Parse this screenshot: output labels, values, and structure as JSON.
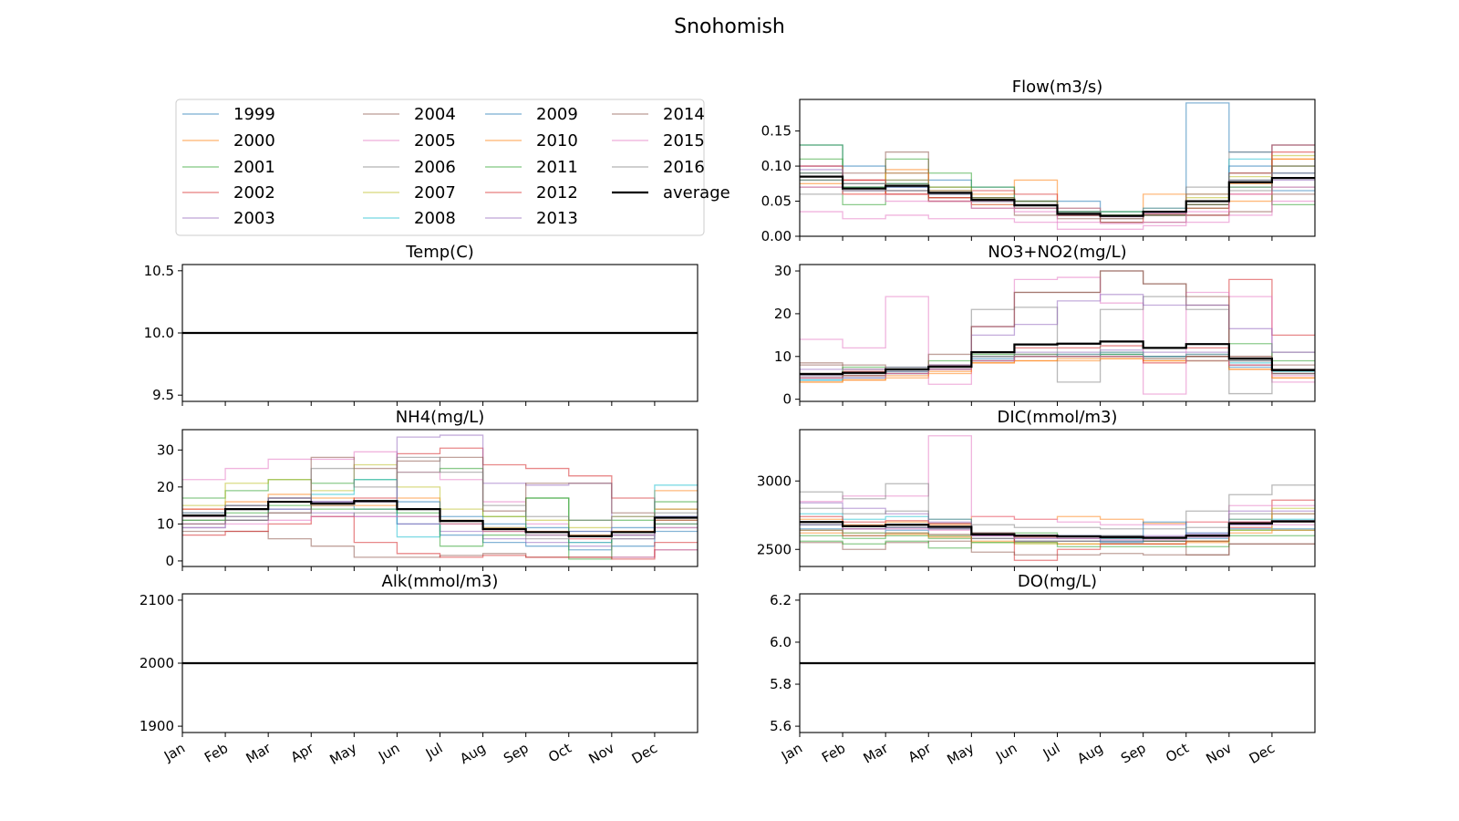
{
  "figure_title": "Snohomish",
  "months": [
    "Jan",
    "Feb",
    "Mar",
    "Apr",
    "May",
    "Jun",
    "Jul",
    "Aug",
    "Sep",
    "Oct",
    "Nov",
    "Dec"
  ],
  "legend": {
    "entries": [
      "1999",
      "2000",
      "2001",
      "2002",
      "2003",
      "2004",
      "2005",
      "2006",
      "2007",
      "2008",
      "2009",
      "2010",
      "2011",
      "2012",
      "2013",
      "2014",
      "2015",
      "2016",
      "average"
    ],
    "colors": [
      "#1f77b4",
      "#ff7f0e",
      "#2ca02c",
      "#d62728",
      "#9467bd",
      "#8c564b",
      "#e377c2",
      "#7f7f7f",
      "#bcbd22",
      "#17becf",
      "#1f77b4",
      "#ff7f0e",
      "#2ca02c",
      "#d62728",
      "#9467bd",
      "#8c564b",
      "#e377c2",
      "#7f7f7f",
      "#000000"
    ],
    "location": "upper-left panel"
  },
  "chart_data": [
    {
      "type": "line",
      "step": true,
      "title": "Flow(m3/s)",
      "ylim": [
        0,
        0.195
      ],
      "yticks": [
        "0.00",
        "0.05",
        "0.10",
        "0.15"
      ],
      "yticks_values": [
        0,
        0.05,
        0.1,
        0.15
      ],
      "average": [
        0.085,
        0.068,
        0.072,
        0.062,
        0.052,
        0.044,
        0.032,
        0.029,
        0.035,
        0.05,
        0.077,
        0.083
      ],
      "years": [
        [
          0.13,
          0.1,
          0.09,
          0.08,
          0.07,
          0.05,
          0.05,
          0.035,
          0.035,
          0.19,
          0.12,
          0.13
        ],
        [
          0.08,
          0.06,
          0.095,
          0.07,
          0.06,
          0.08,
          0.04,
          0.03,
          0.06,
          0.045,
          0.05,
          0.11
        ],
        [
          0.13,
          0.045,
          0.11,
          0.09,
          0.07,
          0.05,
          0.035,
          0.035,
          0.035,
          0.04,
          0.08,
          0.045
        ],
        [
          0.09,
          0.08,
          0.06,
          0.05,
          0.065,
          0.06,
          0.03,
          0.02,
          0.03,
          0.03,
          0.09,
          0.13
        ],
        [
          0.1,
          0.07,
          0.075,
          0.06,
          0.045,
          0.04,
          0.04,
          0.03,
          0.03,
          0.05,
          0.07,
          0.08
        ],
        [
          0.07,
          0.09,
          0.12,
          0.05,
          0.04,
          0.03,
          0.025,
          0.02,
          0.02,
          0.03,
          0.035,
          0.06
        ],
        [
          0.035,
          0.025,
          0.03,
          0.025,
          0.025,
          0.02,
          0.01,
          0.01,
          0.015,
          0.02,
          0.03,
          0.05
        ],
        [
          0.06,
          0.065,
          0.07,
          0.06,
          0.05,
          0.04,
          0.03,
          0.025,
          0.03,
          0.07,
          0.12,
          0.07
        ],
        [
          0.09,
          0.07,
          0.08,
          0.065,
          0.055,
          0.045,
          0.03,
          0.03,
          0.035,
          0.055,
          0.085,
          0.115
        ],
        [
          0.08,
          0.075,
          0.07,
          0.06,
          0.05,
          0.045,
          0.03,
          0.03,
          0.04,
          0.05,
          0.11,
          0.09
        ],
        [
          0.09,
          0.07,
          0.065,
          0.055,
          0.05,
          0.045,
          0.035,
          0.03,
          0.035,
          0.045,
          0.1,
          0.065
        ],
        [
          0.075,
          0.06,
          0.09,
          0.055,
          0.045,
          0.04,
          0.03,
          0.03,
          0.035,
          0.06,
          0.075,
          0.11
        ],
        [
          0.11,
          0.07,
          0.075,
          0.07,
          0.055,
          0.05,
          0.035,
          0.03,
          0.03,
          0.045,
          0.07,
          0.1
        ],
        [
          0.1,
          0.08,
          0.06,
          0.055,
          0.05,
          0.045,
          0.03,
          0.028,
          0.032,
          0.04,
          0.06,
          0.12
        ],
        [
          0.095,
          0.065,
          0.07,
          0.06,
          0.05,
          0.04,
          0.03,
          0.028,
          0.033,
          0.05,
          0.08,
          0.09
        ],
        [
          0.085,
          0.075,
          0.065,
          0.065,
          0.055,
          0.05,
          0.03,
          0.025,
          0.03,
          0.045,
          0.09,
          0.1
        ],
        [
          0.07,
          0.06,
          0.05,
          0.05,
          0.04,
          0.035,
          0.02,
          0.018,
          0.02,
          0.035,
          0.06,
          0.07
        ],
        [
          0.08,
          0.065,
          0.08,
          0.06,
          0.05,
          0.045,
          0.035,
          0.03,
          0.04,
          0.06,
          0.065,
          0.09
        ]
      ]
    },
    {
      "type": "line",
      "step": true,
      "title": "Temp(C)",
      "ylim": [
        9.45,
        10.55
      ],
      "yticks": [
        "9.5",
        "10.0",
        "10.5"
      ],
      "yticks_values": [
        9.5,
        10.0,
        10.5
      ],
      "average": [
        10,
        10,
        10,
        10,
        10,
        10,
        10,
        10,
        10,
        10,
        10,
        10
      ],
      "constant_all_years": 10
    },
    {
      "type": "line",
      "step": true,
      "title": "NO3+NO2(mg/L)",
      "ylim": [
        -0.5,
        31.5
      ],
      "yticks": [
        "0",
        "10",
        "20",
        "30"
      ],
      "yticks_values": [
        0,
        10,
        20,
        30
      ],
      "average": [
        5.9,
        6.2,
        7.0,
        7.6,
        11.0,
        12.8,
        13.0,
        13.5,
        12.0,
        12.9,
        9.5,
        6.8
      ],
      "years": [
        [
          4.5,
          5,
          6,
          7,
          9,
          10,
          10,
          10.5,
          10,
          10,
          8,
          6
        ],
        [
          4,
          4.5,
          5,
          6,
          8.5,
          9,
          9,
          9.5,
          9,
          9,
          7,
          5
        ],
        [
          5,
          6,
          7,
          8,
          10,
          10.5,
          10,
          10.5,
          10,
          10,
          9,
          7
        ],
        [
          6,
          6.5,
          7,
          8,
          11,
          12,
          12,
          12.5,
          12,
          12,
          28,
          15
        ],
        [
          5.5,
          6,
          6.5,
          7.5,
          10,
          11,
          11,
          11.5,
          11,
          11,
          9,
          7
        ],
        [
          8,
          7,
          7,
          8,
          17,
          25,
          25,
          30,
          27,
          22,
          10,
          8
        ],
        [
          14,
          12,
          24,
          3.5,
          17,
          28,
          28.5,
          22.5,
          1.2,
          25,
          24,
          4
        ],
        [
          6,
          6,
          7,
          8,
          21,
          21.5,
          4,
          21,
          24,
          21,
          1.3,
          11
        ],
        [
          5,
          5.5,
          6,
          7,
          9,
          10,
          10,
          10,
          9.5,
          10,
          8,
          6
        ],
        [
          4.5,
          5,
          6,
          7,
          9,
          10,
          10.5,
          11,
          10,
          10.5,
          8.5,
          6.5
        ],
        [
          5,
          5.5,
          6.5,
          7,
          9.5,
          10,
          10,
          10,
          10,
          10,
          7.5,
          6
        ],
        [
          4,
          4.5,
          5.5,
          6.5,
          8.5,
          9,
          9.5,
          9.5,
          9,
          9,
          7,
          5
        ],
        [
          6,
          7.5,
          7.5,
          9,
          10.5,
          10,
          10,
          10,
          9.5,
          9,
          13,
          9
        ],
        [
          5,
          5.5,
          6,
          7,
          9,
          10,
          10,
          10,
          8.5,
          10,
          8,
          6
        ],
        [
          7,
          7,
          7.5,
          8,
          15,
          17.5,
          23,
          24.5,
          22,
          22,
          16.5,
          11
        ],
        [
          8.5,
          8,
          7,
          10.5,
          17,
          25,
          25,
          30,
          27,
          24,
          10,
          7
        ],
        [
          5,
          5,
          6,
          7,
          9,
          10,
          10,
          10,
          9.5,
          9,
          8,
          5.5
        ],
        [
          5.5,
          6,
          6.5,
          7.5,
          10,
          10.5,
          10.5,
          11,
          10,
          10.5,
          9,
          6
        ]
      ]
    },
    {
      "type": "line",
      "step": true,
      "title": "NH4(mg/L)",
      "ylim": [
        -1.5,
        35.5
      ],
      "yticks": [
        "0",
        "10",
        "20",
        "30"
      ],
      "yticks_values": [
        0,
        10,
        20,
        30
      ],
      "average": [
        12.3,
        14.0,
        16.0,
        15.5,
        16.2,
        14.0,
        10.8,
        8.6,
        7.8,
        6.7,
        7.8,
        11.7
      ],
      "years": [
        [
          9,
          11,
          14,
          15,
          14,
          10,
          7,
          5,
          4,
          3,
          4,
          8
        ],
        [
          14,
          16,
          18,
          17,
          16,
          17,
          10,
          8,
          7,
          6,
          8,
          19
        ],
        [
          17,
          19,
          22,
          21,
          22,
          24,
          25,
          12,
          17,
          11,
          11,
          16
        ],
        [
          14,
          15,
          17,
          16,
          17,
          29,
          30.5,
          26,
          25,
          23,
          17,
          14
        ],
        [
          10,
          12,
          14,
          13,
          12,
          10,
          8,
          6,
          5,
          4,
          6,
          10
        ],
        [
          8,
          8,
          6,
          4,
          1,
          1,
          1.5,
          2,
          1,
          1,
          1,
          3
        ],
        [
          22,
          25,
          27.5,
          27.5,
          29.5,
          24,
          22,
          16,
          10,
          8,
          1,
          3
        ],
        [
          11,
          12,
          13,
          12,
          13,
          12,
          10,
          8,
          6,
          5,
          6,
          9
        ],
        [
          15,
          21,
          22,
          19,
          26,
          20,
          14,
          12,
          11,
          9,
          12,
          14
        ],
        [
          12,
          14,
          16,
          18,
          22,
          6.5,
          11,
          9,
          7,
          5,
          7,
          20.5
        ],
        [
          13,
          15,
          17,
          16,
          16,
          16,
          12,
          10,
          9,
          8,
          9,
          12
        ],
        [
          12,
          14,
          16,
          15,
          15,
          14,
          11,
          9,
          8,
          7,
          8,
          11
        ],
        [
          11,
          13,
          15,
          14,
          14,
          13,
          4,
          7,
          17,
          0.5,
          7,
          10
        ],
        [
          7,
          8,
          10,
          12,
          5,
          2,
          1,
          1.5,
          1,
          1,
          0.5,
          5
        ],
        [
          12,
          14,
          17,
          16,
          16,
          33.5,
          34,
          21,
          20.5,
          21,
          7,
          12
        ],
        [
          10,
          11,
          13,
          28,
          25,
          27,
          28,
          13.5,
          21,
          21,
          13,
          11
        ],
        [
          9,
          10,
          11,
          12,
          12,
          12,
          10,
          8,
          7,
          6,
          7,
          9
        ],
        [
          13,
          15,
          17,
          25,
          20,
          28,
          24,
          15,
          12,
          11,
          12,
          13
        ]
      ]
    },
    {
      "type": "line",
      "step": true,
      "title": "DIC(mmol/m3)",
      "ylim": [
        2375,
        3375
      ],
      "yticks": [
        "2500",
        "3000"
      ],
      "yticks_values": [
        2500,
        3000
      ],
      "average": [
        2700,
        2670,
        2680,
        2665,
        2610,
        2600,
        2595,
        2590,
        2585,
        2600,
        2690,
        2705
      ],
      "years": [
        [
          2650,
          2620,
          2640,
          2600,
          2580,
          2560,
          2560,
          2550,
          2560,
          2580,
          2650,
          2650
        ],
        [
          2720,
          2680,
          2700,
          2680,
          2740,
          2720,
          2740,
          2720,
          2690,
          2700,
          2720,
          2760
        ],
        [
          2600,
          2580,
          2600,
          2580,
          2620,
          2620,
          2600,
          2600,
          2560,
          2560,
          2640,
          2640
        ],
        [
          2680,
          2650,
          2660,
          2650,
          2600,
          2590,
          2580,
          2580,
          2580,
          2600,
          2660,
          2860
        ],
        [
          2700,
          2670,
          2680,
          2660,
          2610,
          2600,
          2600,
          2590,
          2590,
          2610,
          2700,
          2710
        ],
        [
          2550,
          2500,
          2550,
          2560,
          2580,
          2560,
          2560,
          2560,
          2560,
          2460,
          2540,
          2540
        ],
        [
          2850,
          2890,
          2890,
          3330,
          2740,
          2720,
          2700,
          2680,
          2680,
          2700,
          2820,
          2820
        ],
        [
          2920,
          2870,
          2980,
          2690,
          2620,
          2600,
          2600,
          2580,
          2580,
          2780,
          2900,
          2970
        ],
        [
          2640,
          2620,
          2620,
          2600,
          2550,
          2540,
          2540,
          2540,
          2540,
          2560,
          2640,
          2800
        ],
        [
          2760,
          2720,
          2740,
          2720,
          2620,
          2600,
          2600,
          2580,
          2580,
          2620,
          2720,
          2720
        ],
        [
          2680,
          2650,
          2660,
          2650,
          2600,
          2580,
          2580,
          2560,
          2700,
          2600,
          2680,
          2700
        ],
        [
          2620,
          2600,
          2610,
          2590,
          2560,
          2550,
          2540,
          2540,
          2540,
          2550,
          2620,
          2640
        ],
        [
          2560,
          2540,
          2560,
          2510,
          2550,
          2550,
          2520,
          2520,
          2520,
          2520,
          2600,
          2600
        ],
        [
          2740,
          2700,
          2710,
          2690,
          2620,
          2420,
          2500,
          2540,
          2540,
          2560,
          2700,
          2700
        ],
        [
          2840,
          2800,
          2760,
          2700,
          2600,
          2600,
          2600,
          2600,
          2600,
          2620,
          2780,
          2780
        ],
        [
          2640,
          2600,
          2620,
          2610,
          2480,
          2460,
          2460,
          2470,
          2460,
          2460,
          2540,
          2540
        ],
        [
          2700,
          2650,
          2650,
          2640,
          2600,
          2580,
          2580,
          2570,
          2570,
          2590,
          2680,
          2680
        ],
        [
          2800,
          2760,
          2780,
          2720,
          2680,
          2660,
          2660,
          2650,
          2650,
          2660,
          2760,
          2760
        ]
      ]
    },
    {
      "type": "line",
      "step": true,
      "title": "Alk(mmol/m3)",
      "ylim": [
        1890,
        2110
      ],
      "yticks": [
        "1900",
        "2000",
        "2100"
      ],
      "yticks_values": [
        1900,
        2000,
        2100
      ],
      "average": [
        2000,
        2000,
        2000,
        2000,
        2000,
        2000,
        2000,
        2000,
        2000,
        2000,
        2000,
        2000
      ],
      "constant_all_years": 2000
    },
    {
      "type": "line",
      "step": true,
      "title": "DO(mg/L)",
      "ylim": [
        5.57,
        6.23
      ],
      "yticks": [
        "5.6",
        "5.8",
        "6.0",
        "6.2"
      ],
      "yticks_values": [
        5.6,
        5.8,
        6.0,
        6.2
      ],
      "average": [
        5.9,
        5.9,
        5.9,
        5.9,
        5.9,
        5.9,
        5.9,
        5.9,
        5.9,
        5.9,
        5.9,
        5.9
      ],
      "constant_all_years": 5.9
    }
  ]
}
